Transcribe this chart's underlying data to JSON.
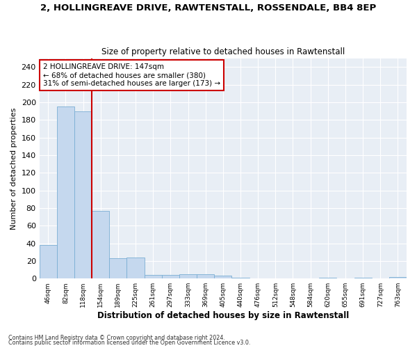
{
  "title": "2, HOLLINGREAVE DRIVE, RAWTENSTALL, ROSSENDALE, BB4 8EP",
  "subtitle": "Size of property relative to detached houses in Rawtenstall",
  "xlabel": "Distribution of detached houses by size in Rawtenstall",
  "ylabel": "Number of detached properties",
  "bin_labels": [
    "46sqm",
    "82sqm",
    "118sqm",
    "154sqm",
    "189sqm",
    "225sqm",
    "261sqm",
    "297sqm",
    "333sqm",
    "369sqm",
    "405sqm",
    "440sqm",
    "476sqm",
    "512sqm",
    "548sqm",
    "584sqm",
    "620sqm",
    "655sqm",
    "691sqm",
    "727sqm",
    "763sqm"
  ],
  "bar_values": [
    38,
    195,
    190,
    77,
    23,
    24,
    4,
    4,
    5,
    5,
    3,
    1,
    0,
    0,
    0,
    0,
    1,
    0,
    1,
    0,
    2
  ],
  "bar_color": "#c5d8ee",
  "bar_edge_color": "#7aaed4",
  "vline_x_index": 3,
  "vline_color": "#cc0000",
  "annotation_text": "2 HOLLINGREAVE DRIVE: 147sqm\n← 68% of detached houses are smaller (380)\n31% of semi-detached houses are larger (173) →",
  "annotation_box_color": "#ffffff",
  "annotation_box_edge_color": "#cc0000",
  "ylim": [
    0,
    250
  ],
  "yticks": [
    0,
    20,
    40,
    60,
    80,
    100,
    120,
    140,
    160,
    180,
    200,
    220,
    240
  ],
  "fig_bg_color": "#ffffff",
  "plot_bg_color": "#e8eef5",
  "grid_color": "#ffffff",
  "footer1": "Contains HM Land Registry data © Crown copyright and database right 2024.",
  "footer2": "Contains public sector information licensed under the Open Government Licence v3.0."
}
